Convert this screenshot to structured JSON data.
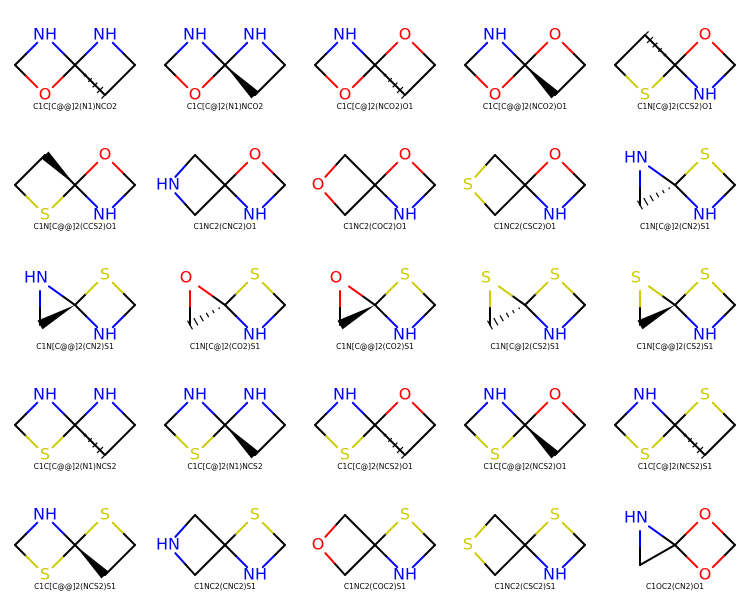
{
  "colors": {
    "N": "#0000ff",
    "O": "#ff0000",
    "S": "#cccc00",
    "C": "#000000"
  },
  "molecules": [
    {
      "smiles": "C1C[C@@]2(N1)NCO2",
      "atoms": {
        "tl": "NH",
        "bl": "O",
        "tr": "NH"
      },
      "rightRing": "square",
      "stereo": "hash"
    },
    {
      "smiles": "C1C[C@]2(N1)NCO2",
      "atoms": {
        "tl": "NH",
        "bl": "O",
        "tr": "NH"
      },
      "rightRing": "square",
      "stereo": "wedge"
    },
    {
      "smiles": "C1C[C@]2(NCO2)O1",
      "atoms": {
        "tl": "NH",
        "bl": "O",
        "tr": "O"
      },
      "rightRing": "square",
      "stereo": "hash"
    },
    {
      "smiles": "C1C[C@@]2(NCO2)O1",
      "atoms": {
        "tl": "NH",
        "bl": "O",
        "tr": "O"
      },
      "rightRing": "square",
      "stereo": "wedge"
    },
    {
      "smiles": "C1N[C@]2(CCS2)O1",
      "atoms": {
        "tr": "O",
        "br": "NH",
        "bl": "S"
      },
      "rightRing": "square",
      "mirror": true,
      "stereo": "hash"
    },
    {
      "smiles": "C1N[C@@]2(CCS2)O1",
      "atoms": {
        "tr": "O",
        "br": "NH",
        "bl": "S"
      },
      "rightRing": "square",
      "mirror": true,
      "stereo": "wedge"
    },
    {
      "smiles": "C1NC2(CNC2)O1",
      "atoms": {
        "left": "HN",
        "tr": "O",
        "br": "NH"
      },
      "rightRing": "square",
      "leftVertex": true
    },
    {
      "smiles": "C1NC2(COC2)O1",
      "atoms": {
        "left": "O",
        "tr": "O",
        "br": "NH"
      },
      "rightRing": "square",
      "leftVertex": true
    },
    {
      "smiles": "C1NC2(CSC2)O1",
      "atoms": {
        "left": "S",
        "tr": "O",
        "br": "NH"
      },
      "rightRing": "square",
      "leftVertex": true
    },
    {
      "smiles": "C1N[C@]2(CN2)S1",
      "atoms": {
        "tlv": "HN",
        "tr": "S",
        "br": "NH"
      },
      "rightRing": "square",
      "leftRing": "triangle",
      "stereo": "hash"
    },
    {
      "smiles": "C1N[C@@]2(CN2)S1",
      "atoms": {
        "tlv": "HN",
        "tr": "S",
        "br": "NH"
      },
      "rightRing": "square",
      "leftRing": "triangle",
      "stereo": "wedge"
    },
    {
      "smiles": "C1N[C@]2(CO2)S1",
      "atoms": {
        "tlv": "O",
        "tr": "S",
        "br": "NH"
      },
      "rightRing": "square",
      "leftRing": "triangle",
      "stereo": "hash"
    },
    {
      "smiles": "C1N[C@@]2(CO2)S1",
      "atoms": {
        "tlv": "O",
        "tr": "S",
        "br": "NH"
      },
      "rightRing": "square",
      "leftRing": "triangle",
      "stereo": "wedge"
    },
    {
      "smiles": "C1N[C@]2(CS2)S1",
      "atoms": {
        "tlv": "S",
        "tr": "S",
        "br": "NH"
      },
      "rightRing": "square",
      "leftRing": "triangle",
      "stereo": "hash"
    },
    {
      "smiles": "C1N[C@@]2(CS2)S1",
      "atoms": {
        "tlv": "S",
        "tr": "S",
        "br": "NH"
      },
      "rightRing": "square",
      "leftRing": "triangle",
      "stereo": "wedge"
    },
    {
      "smiles": "C1C[C@@]2(N1)NCS2",
      "atoms": {
        "tl": "NH",
        "bl": "S",
        "tr": "NH"
      },
      "rightRing": "square",
      "stereo": "hash"
    },
    {
      "smiles": "C1C[C@]2(N1)NCS2",
      "atoms": {
        "tl": "NH",
        "bl": "S",
        "tr": "NH"
      },
      "rightRing": "square",
      "stereo": "wedge"
    },
    {
      "smiles": "C1C[C@]2(NCS2)O1",
      "atoms": {
        "tl": "NH",
        "bl": "S",
        "tr": "O"
      },
      "rightRing": "square",
      "stereo": "hash"
    },
    {
      "smiles": "C1C[C@@]2(NCS2)O1",
      "atoms": {
        "tl": "NH",
        "bl": "S",
        "tr": "O"
      },
      "rightRing": "square",
      "stereo": "wedge"
    },
    {
      "smiles": "C1C[C@]2(NCS2)S1",
      "atoms": {
        "tl": "NH",
        "bl": "S",
        "tr": "S"
      },
      "rightRing": "square",
      "stereo": "hash"
    },
    {
      "smiles": "C1C[C@@]2(NCS2)S1",
      "atoms": {
        "tl": "NH",
        "bl": "S",
        "tr": "S"
      },
      "rightRing": "square",
      "stereo": "wedge"
    },
    {
      "smiles": "C1NC2(CNC2)S1",
      "atoms": {
        "left": "HN",
        "tr": "S",
        "br": "NH"
      },
      "rightRing": "square",
      "leftVertex": true
    },
    {
      "smiles": "C1NC2(COC2)S1",
      "atoms": {
        "left": "O",
        "tr": "S",
        "br": "NH"
      },
      "rightRing": "square",
      "leftVertex": true
    },
    {
      "smiles": "C1NC2(CSC2)S1",
      "atoms": {
        "left": "S",
        "tr": "S",
        "br": "NH"
      },
      "rightRing": "square",
      "leftVertex": true
    },
    {
      "smiles": "C1OC2(CN2)O1",
      "atoms": {
        "tlv": "HN",
        "tr": "O",
        "br": "O"
      },
      "rightRing": "square",
      "leftRing": "triangle"
    }
  ]
}
